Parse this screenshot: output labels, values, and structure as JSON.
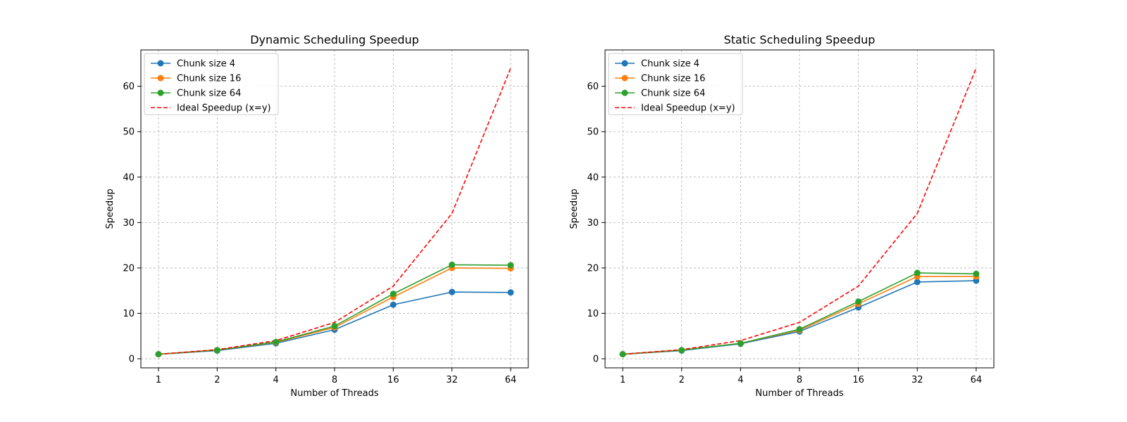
{
  "chart_data": [
    {
      "type": "line",
      "title": "Dynamic Scheduling Speedup",
      "xlabel": "Number of Threads",
      "ylabel": "Speedup",
      "x_scale": "log2",
      "x": [
        1,
        2,
        4,
        8,
        16,
        32,
        64
      ],
      "xtick_labels": [
        "1",
        "2",
        "4",
        "8",
        "16",
        "32",
        "64"
      ],
      "ylim": [
        -2,
        68
      ],
      "yticks": [
        0,
        10,
        20,
        30,
        40,
        50,
        60
      ],
      "ytick_labels": [
        "0",
        "10",
        "20",
        "30",
        "40",
        "50",
        "60"
      ],
      "grid": true,
      "legend_position": "upper-left",
      "series": [
        {
          "name": "Chunk size 4",
          "color": "#1f77b4",
          "style": "solid-marker",
          "values": [
            1.0,
            1.8,
            3.4,
            6.4,
            11.9,
            14.7,
            14.6
          ]
        },
        {
          "name": "Chunk size 16",
          "color": "#ff7f0e",
          "style": "solid-marker",
          "values": [
            1.0,
            1.9,
            3.6,
            6.9,
            13.6,
            20.0,
            19.9
          ]
        },
        {
          "name": "Chunk size 64",
          "color": "#2ca02c",
          "style": "solid-marker",
          "values": [
            1.0,
            1.9,
            3.7,
            7.2,
            14.3,
            20.7,
            20.6
          ]
        },
        {
          "name": "Ideal Speedup (x=y)",
          "color": "#ff0000",
          "style": "dashed",
          "values": [
            1,
            2,
            4,
            8,
            16,
            32,
            64
          ]
        }
      ]
    },
    {
      "type": "line",
      "title": "Static Scheduling Speedup",
      "xlabel": "Number of Threads",
      "ylabel": "Speedup",
      "x_scale": "log2",
      "x": [
        1,
        2,
        4,
        8,
        16,
        32,
        64
      ],
      "xtick_labels": [
        "1",
        "2",
        "4",
        "8",
        "16",
        "32",
        "64"
      ],
      "ylim": [
        -2,
        68
      ],
      "yticks": [
        0,
        10,
        20,
        30,
        40,
        50,
        60
      ],
      "ytick_labels": [
        "0",
        "10",
        "20",
        "30",
        "40",
        "50",
        "60"
      ],
      "grid": true,
      "legend_position": "upper-left",
      "series": [
        {
          "name": "Chunk size 4",
          "color": "#1f77b4",
          "style": "solid-marker",
          "values": [
            1.0,
            1.8,
            3.3,
            6.0,
            11.3,
            16.9,
            17.2
          ]
        },
        {
          "name": "Chunk size 16",
          "color": "#ff7f0e",
          "style": "solid-marker",
          "values": [
            1.0,
            1.9,
            3.4,
            6.3,
            12.1,
            18.1,
            18.1
          ]
        },
        {
          "name": "Chunk size 64",
          "color": "#2ca02c",
          "style": "solid-marker",
          "values": [
            1.0,
            1.9,
            3.4,
            6.5,
            12.6,
            18.9,
            18.7
          ]
        },
        {
          "name": "Ideal Speedup (x=y)",
          "color": "#ff0000",
          "style": "dashed",
          "values": [
            1,
            2,
            4,
            8,
            16,
            32,
            64
          ]
        }
      ]
    }
  ]
}
